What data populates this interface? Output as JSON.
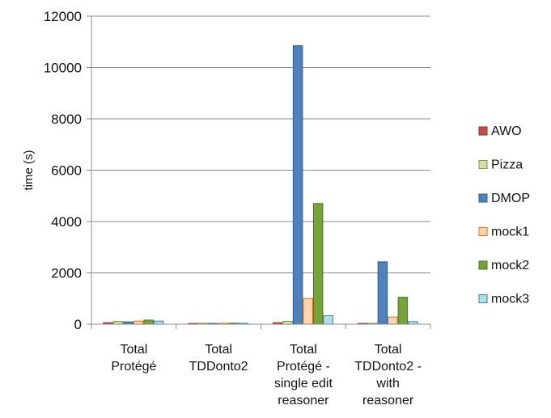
{
  "chart_data": {
    "type": "bar",
    "title": "",
    "xlabel": "",
    "ylabel": "time (s)",
    "ylim": [
      0,
      12000
    ],
    "yticks": [
      0,
      2000,
      4000,
      6000,
      8000,
      10000,
      12000
    ],
    "grid": true,
    "legend_position": "right",
    "categories": [
      [
        "Total",
        "Protégé"
      ],
      [
        "Total",
        "TDDonto2"
      ],
      [
        "Total",
        "Protégé -",
        "single edit",
        "reasoner"
      ],
      [
        "Total",
        "TDDonto2 -",
        "with",
        "reasoner"
      ]
    ],
    "series": [
      {
        "name": "AWO",
        "color": "#c0504d",
        "border": "#8c2f2c",
        "values": [
          60,
          15,
          60,
          15
        ]
      },
      {
        "name": "Pizza",
        "color": "#cfe3a8",
        "border": "#7f9a4a",
        "values": [
          110,
          40,
          110,
          40
        ]
      },
      {
        "name": "DMOP",
        "color": "#4f81bd",
        "border": "#2f5b8f",
        "values": [
          90,
          20,
          10850,
          2430
        ]
      },
      {
        "name": "mock1",
        "color": "#fcd5b4",
        "border": "#e46c0a",
        "values": [
          120,
          35,
          1000,
          280
        ]
      },
      {
        "name": "mock2",
        "color": "#77a33b",
        "border": "#4f6f22",
        "values": [
          160,
          40,
          4700,
          1050
        ]
      },
      {
        "name": "mock3",
        "color": "#b7dee8",
        "border": "#31859c",
        "values": [
          120,
          35,
          330,
          100
        ]
      }
    ]
  }
}
